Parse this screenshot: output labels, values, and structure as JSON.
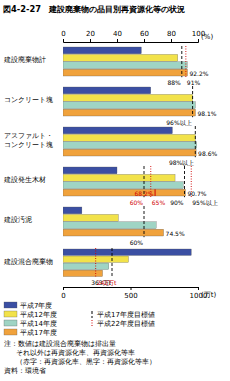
{
  "chart_data": [
    {
      "type": "bar",
      "title": "図4-2-27　建設廃棄物の品目別再資源化等の状況",
      "orientation": "horizontal",
      "categories": [
        "建設廃棄物計",
        "コンクリート塊",
        "アスファルト・コンクリート塊",
        "建設発生木材",
        "建設汚泥"
      ],
      "series": [
        {
          "name": "平成7年度",
          "color": "#3b4fa3",
          "values": [
            58,
            65,
            81,
            40,
            14
          ]
        },
        {
          "name": "平成12年度",
          "color": "#f2e24a",
          "values": [
            85,
            96,
            98,
            83,
            41
          ]
        },
        {
          "name": "平成14年度",
          "color": "#9fd4c4",
          "values": [
            92,
            98,
            99,
            89,
            69
          ]
        },
        {
          "name": "平成17年度",
          "color": "#f0a23c",
          "values": [
            92.2,
            98.1,
            98.6,
            90.7,
            74.5
          ],
          "value_labels": [
            "92.2%",
            "98.1%",
            "98.6%",
            "90.7%",
            "74.5%"
          ]
        }
      ],
      "data_labels": true,
      "ylim": [
        0,
        100
      ],
      "yticks": [
        0,
        20,
        40,
        60,
        80,
        100
      ],
      "ylabel": "(%)",
      "grid": false,
      "legend": "bottom-left",
      "targets": [
        {
          "name": "平成17年度目標値",
          "color": "#000000",
          "line_style": "dashed",
          "points": [
            {
              "category": 0,
              "value": 88,
              "label": "88%",
              "label_color": "#000000"
            },
            {
              "category": 1,
              "value": 96,
              "label": "96%以上",
              "label_color": "#000000"
            },
            {
              "category": 2,
              "value": 98,
              "label": "98%以上",
              "label_color": "#000000"
            },
            {
              "category": 3,
              "value": 60,
              "label": "60%",
              "label_color": "#d00000"
            },
            {
              "category": 3,
              "value": 90,
              "label": "90%",
              "label_color": "#000000"
            },
            {
              "category": 4,
              "value": 60,
              "label": "60%",
              "label_color": "#000000"
            }
          ]
        },
        {
          "name": "平成22年度目標値",
          "color": "#d00000",
          "line_style": "dotted",
          "points": [
            {
              "category": 0,
              "value": 91,
              "label": "91%",
              "label_color": "#000000"
            },
            {
              "category": 3,
              "value": 65,
              "label": "65%",
              "label_color": "#d00000"
            },
            {
              "category": 3,
              "value": 95,
              "label": "95%以上",
              "label_color": "#000000"
            }
          ]
        }
      ],
      "annotations": [
        {
          "category": 3,
          "value": 68.2,
          "text": "68.2%",
          "color": "#d00000"
        }
      ],
      "notes": [
        "注：数値は建設混合廃棄物は排出量",
        "それ以外は再資源化率、再資源化等率",
        "（赤字：再資源化率、黒字：再資源化等率）"
      ],
      "source": "資料：環境省"
    },
    {
      "type": "bar",
      "orientation": "horizontal",
      "categories": [
        "建設混合廃棄物"
      ],
      "series": [
        {
          "color": "#3b4fa3",
          "values": [
            950
          ]
        },
        {
          "color": "#f2e24a",
          "values": [
            485
          ]
        },
        {
          "color": "#9fd4c4",
          "values": [
            339
          ]
        },
        {
          "color": "#f0a23c",
          "values": [
            293
          ]
        }
      ],
      "ylim": [
        0,
        1000
      ],
      "yticks": [
        0,
        500,
        1000
      ],
      "ylabel": "(万t)",
      "targets": [
        {
          "color": "#000000",
          "line_style": "dashed",
          "points": [
            {
              "category": 0,
              "value": 363,
              "label": "363万t",
              "label_color": "#000000"
            }
          ]
        },
        {
          "color": "#d00000",
          "line_style": "dotted",
          "points": [
            {
              "category": 0,
              "value": 242,
              "label": "242万t",
              "label_color": "#d00000"
            }
          ]
        }
      ]
    }
  ]
}
